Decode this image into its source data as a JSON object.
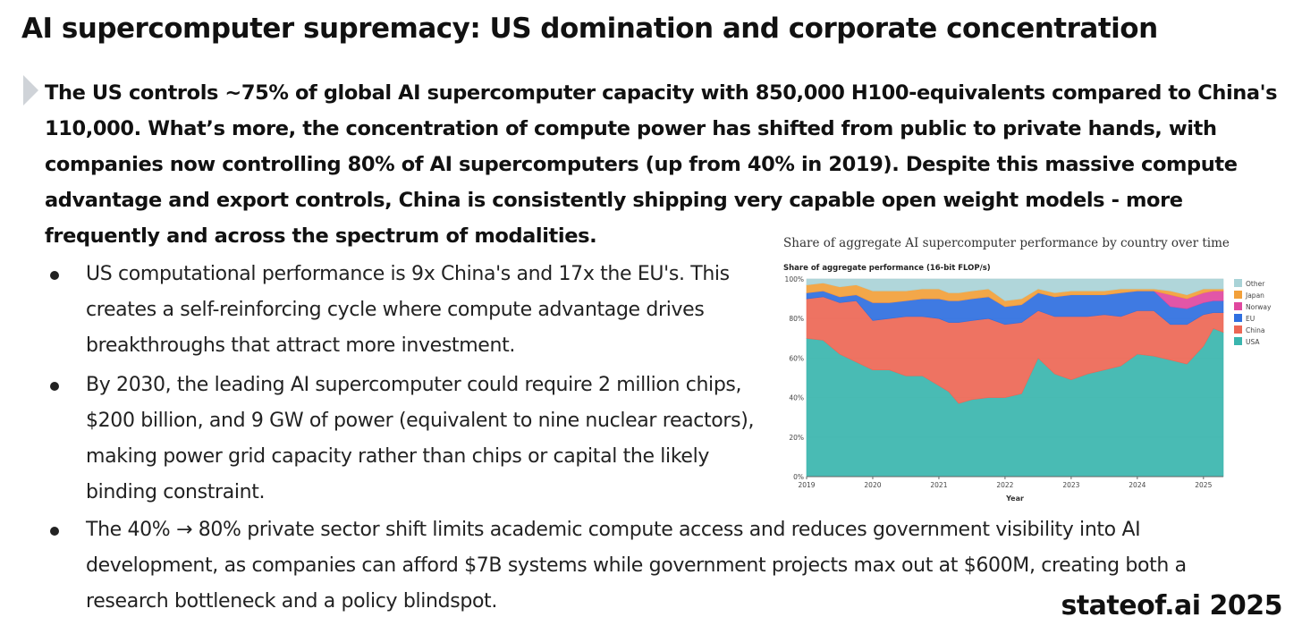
{
  "title": "AI supercomputer supremacy: US domination and corporate concentration",
  "intro": "The US controls ~75% of global AI supercomputer capacity with 850,000 H100-equivalents compared to China's 110,000. What’s more, the concentration of compute power has shifted from public to private hands, with companies now controlling 80% of AI supercomputers (up from 40% in 2019). Despite this massive compute advantage and export controls, China is consistently shipping very capable open weight models - more frequently and across the spectrum of modalities.",
  "bullets": [
    "US computational performance is 9x China's and 17x the EU's. This creates a self-reinforcing cycle where compute advantage drives breakthroughs that attract more investment.",
    "By 2030, the leading AI supercomputer could require 2 million chips, $200 billion, and 9 GW of power (equivalent to nine nuclear reactors), making power grid capacity rather than chips or capital the likely binding constraint.",
    "The 40% → 80% private sector shift limits academic compute access and reduces government visibility into AI development, as companies can afford $7B systems while government projects max out at $600M, creating both a research bottleneck and a policy blindspot."
  ],
  "brand": "stateof.ai 2025",
  "chart_data": {
    "type": "area",
    "stacked": true,
    "title": "Share of aggregate AI supercomputer performance by country over time",
    "ylabel": "Share of aggregate performance (16-bit FLOP/s)",
    "xlabel": "Year",
    "xlim": [
      2019.0,
      2025.3
    ],
    "ylim": [
      0,
      100
    ],
    "x_ticks": [
      "2019",
      "2020",
      "2021",
      "2022",
      "2023",
      "2024",
      "2025"
    ],
    "y_ticks": [
      "0%",
      "20%",
      "40%",
      "60%",
      "80%",
      "100%"
    ],
    "grid": true,
    "legend_position": "right",
    "x": [
      2019.0,
      2019.25,
      2019.5,
      2019.75,
      2020.0,
      2020.25,
      2020.5,
      2020.75,
      2021.0,
      2021.15,
      2021.3,
      2021.5,
      2021.75,
      2022.0,
      2022.25,
      2022.5,
      2022.75,
      2023.0,
      2023.25,
      2023.5,
      2023.75,
      2024.0,
      2024.25,
      2024.5,
      2024.75,
      2025.0,
      2025.15,
      2025.3
    ],
    "series": [
      {
        "name": "USA",
        "color": "#3ab5ae",
        "values": [
          70,
          69,
          62,
          58,
          54,
          54,
          51,
          51,
          46,
          43,
          37,
          39,
          40,
          40,
          42,
          60,
          52,
          49,
          52,
          54,
          56,
          62,
          61,
          59,
          57,
          66,
          75,
          73
        ]
      },
      {
        "name": "China",
        "color": "#ed6755",
        "values": [
          20,
          22,
          26,
          31,
          25,
          26,
          30,
          30,
          34,
          35,
          41,
          40,
          40,
          37,
          36,
          24,
          29,
          32,
          29,
          28,
          25,
          22,
          23,
          18,
          20,
          16,
          8,
          10
        ]
      },
      {
        "name": "EU",
        "color": "#2f6fe0",
        "values": [
          3,
          3,
          3,
          3,
          9,
          8,
          8,
          9,
          10,
          11,
          11,
          11,
          11,
          9,
          9,
          9,
          10,
          11,
          11,
          10,
          12,
          10,
          10,
          9,
          8,
          6,
          6,
          6
        ]
      },
      {
        "name": "Norway",
        "color": "#e0489f",
        "values": [
          0,
          0,
          0,
          0,
          0,
          0,
          0,
          0,
          0,
          0,
          0,
          0,
          0,
          0,
          0,
          0,
          0,
          0,
          0,
          0,
          0,
          0,
          0,
          6,
          5,
          5,
          5,
          5
        ]
      },
      {
        "name": "Japan",
        "color": "#f2a03a",
        "values": [
          4,
          4,
          5,
          5,
          6,
          6,
          5,
          5,
          5,
          4,
          4,
          4,
          4,
          3,
          3,
          2,
          2,
          2,
          2,
          2,
          2,
          1,
          1,
          2,
          2,
          2,
          1,
          1
        ]
      },
      {
        "name": "Other",
        "color": "#a9d3d7",
        "values": [
          3,
          2,
          4,
          3,
          6,
          6,
          6,
          5,
          5,
          7,
          7,
          6,
          5,
          11,
          10,
          5,
          7,
          6,
          6,
          6,
          5,
          5,
          5,
          6,
          8,
          5,
          5,
          5
        ]
      }
    ]
  }
}
